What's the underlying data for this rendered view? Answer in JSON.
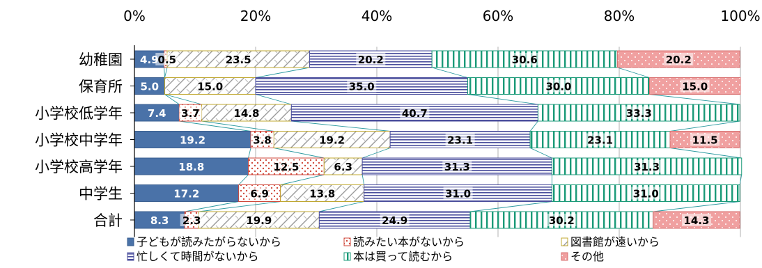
{
  "chart_data": {
    "type": "bar",
    "orientation": "horizontal",
    "stacked": "percent",
    "xlim": [
      0,
      100
    ],
    "xticks": [
      "0%",
      "20%",
      "40%",
      "60%",
      "80%",
      "100%"
    ],
    "categories": [
      "幼稚園",
      "保育所",
      "小学校低学年",
      "小学校中学年",
      "小学校高学年",
      "中学生",
      "合計"
    ],
    "series": [
      {
        "name": "子どもが読みたがらないから",
        "color": "#4a72a8",
        "pattern": "solid",
        "values": [
          4.9,
          5.0,
          7.4,
          19.2,
          18.8,
          17.2,
          8.3
        ],
        "labels": [
          "4.9",
          "5.0",
          "7.4",
          "19.2",
          "18.8",
          "17.2",
          "8.3"
        ]
      },
      {
        "name": "読みたい本がないから",
        "color": "#d04a3c",
        "pattern": "dots",
        "values": [
          0.5,
          0.0,
          3.7,
          3.8,
          12.5,
          6.9,
          2.3
        ],
        "labels": [
          "0.5",
          "",
          "3.7",
          "3.8",
          "12.5",
          "6.9",
          "2.3"
        ]
      },
      {
        "name": "図書館が遠いから",
        "color": "#b8a830",
        "pattern": "diagonal",
        "values": [
          23.5,
          15.0,
          14.8,
          19.2,
          6.3,
          13.8,
          19.9
        ],
        "labels": [
          "23.5",
          "15.0",
          "14.8",
          "19.2",
          "6.3",
          "13.8",
          "19.9"
        ]
      },
      {
        "name": "忙しくて時間がないから",
        "color": "#4a4e9c",
        "pattern": "hstripes",
        "values": [
          20.2,
          35.0,
          40.7,
          23.1,
          31.3,
          31.0,
          24.9
        ],
        "labels": [
          "20.2",
          "35.0",
          "40.7",
          "23.1",
          "31.3",
          "31.0",
          "24.9"
        ]
      },
      {
        "name": "本は買って読むから",
        "color": "#1a9a78",
        "pattern": "vstripes",
        "values": [
          30.6,
          30.0,
          33.3,
          23.1,
          31.3,
          31.0,
          30.2
        ],
        "labels": [
          "30.6",
          "30.0",
          "33.3",
          "23.1",
          "31.3",
          "31.0",
          "30.2"
        ]
      },
      {
        "name": "その他",
        "color": "#e07070",
        "pattern": "pink",
        "values": [
          20.2,
          15.0,
          0.0,
          11.5,
          0.0,
          0.0,
          14.3
        ],
        "labels": [
          "20.2",
          "15.0",
          "",
          "11.5",
          "",
          "",
          "14.3"
        ]
      }
    ],
    "grid": true,
    "legend_position": "bottom"
  }
}
